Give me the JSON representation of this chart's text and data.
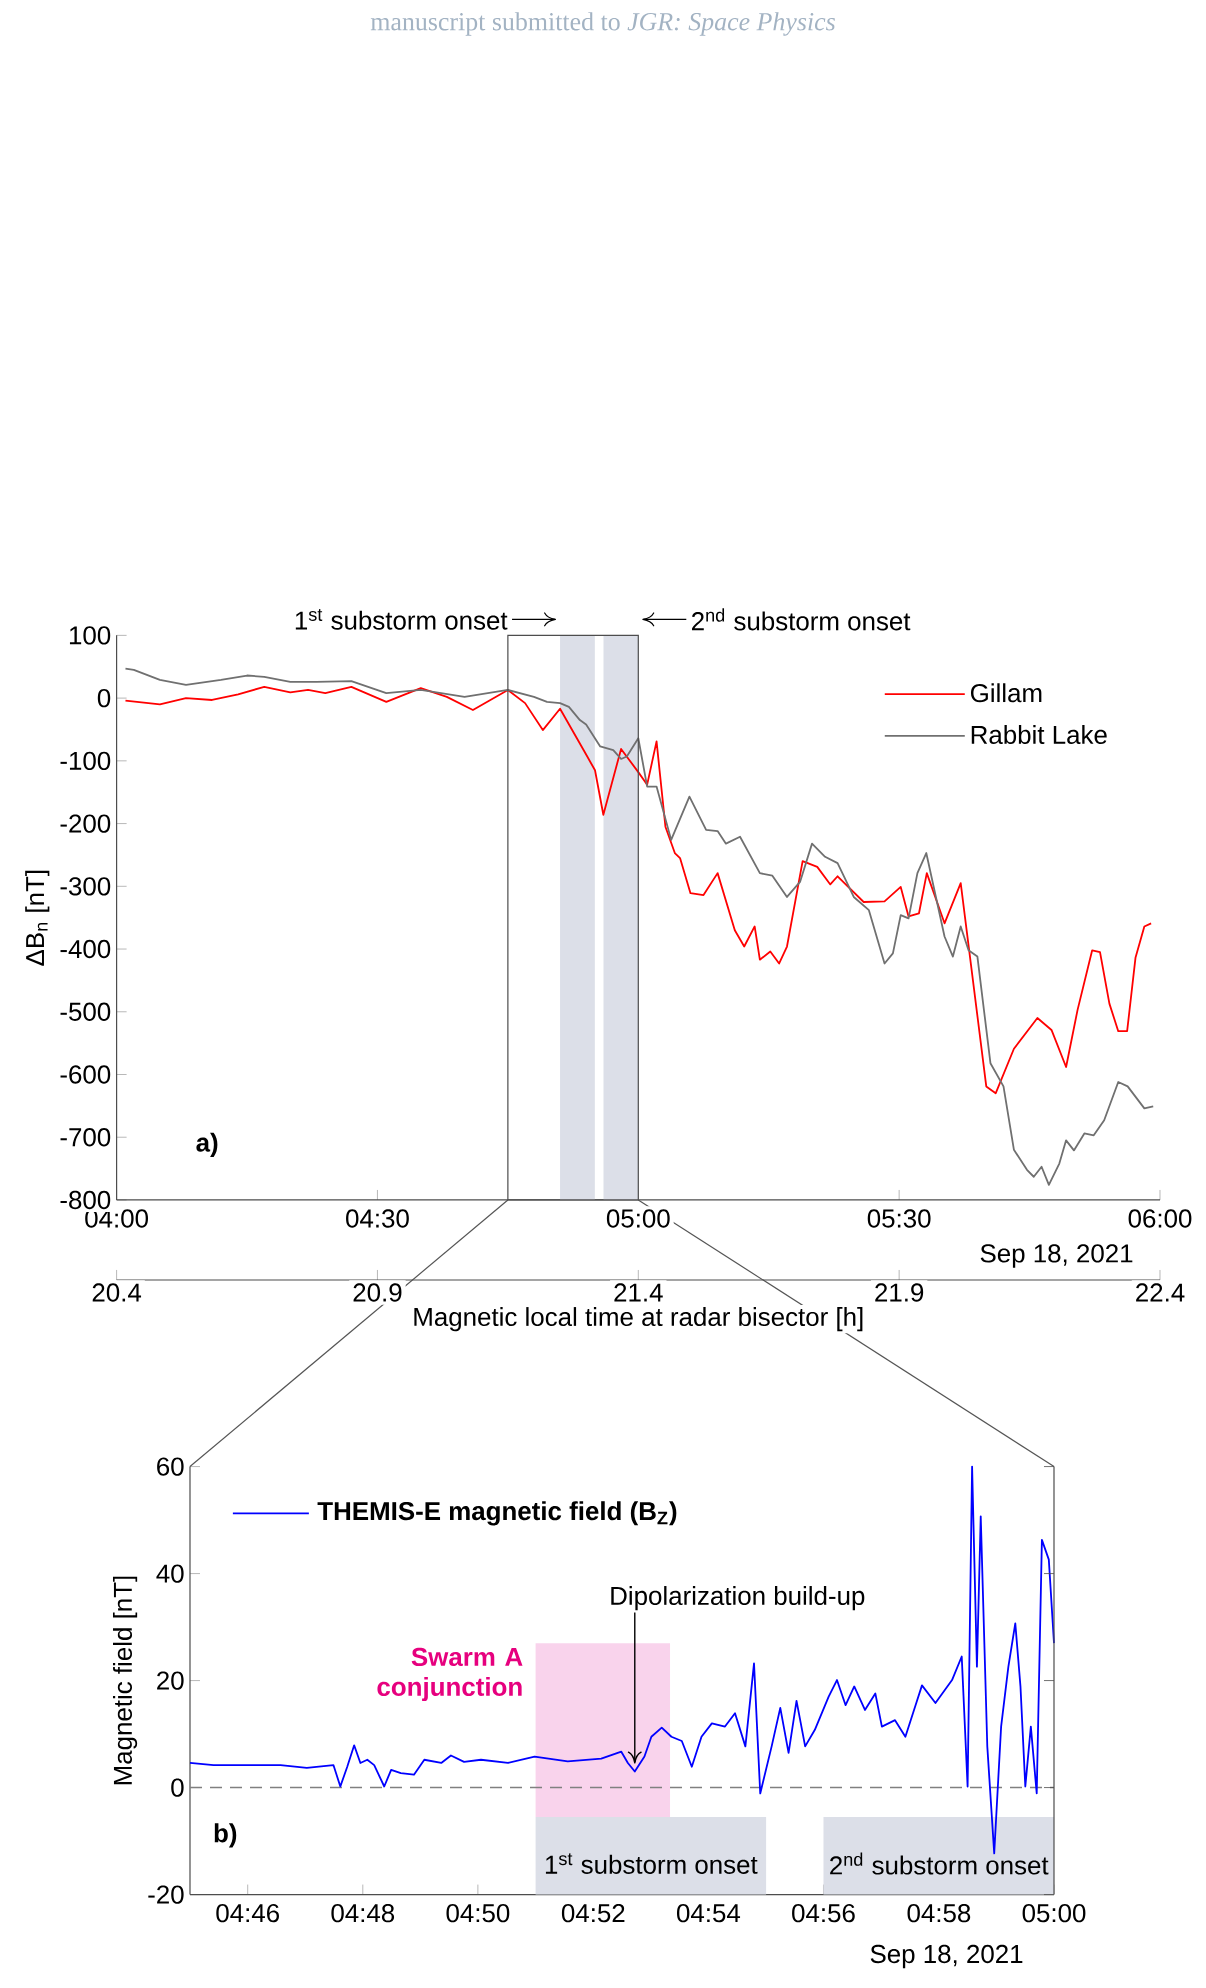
{
  "chart_data": [
    {
      "type": "line",
      "ylabel": "ΔB$_{n}$ [nT]",
      "x2label": "Magnetic local time at radar bisector [h]",
      "xlim": [
        4,
        6
      ],
      "xticks": [
        {
          "value": 4,
          "label": "04:00"
        },
        {
          "value": 4.5,
          "label": "04:30"
        },
        {
          "value": 5,
          "label": "05:00"
        },
        {
          "value": 5.5,
          "label": "05:30"
        },
        {
          "value": 6,
          "label": "06:00"
        }
      ],
      "ylim": [
        -800,
        100
      ],
      "yticks": [
        -800,
        -700,
        -600,
        -500,
        -400,
        -300,
        -200,
        -100,
        0,
        100
      ],
      "x2lim": [
        20.4,
        22.4
      ],
      "x2ticks": [
        20.4,
        20.9,
        21.4,
        21.9,
        22.4
      ],
      "legend": "top right",
      "marker": "none",
      "line_style": "solid",
      "bands": [
        {
          "axis": "x",
          "from": 4.85,
          "to": 4.9167,
          "label": "1$^{st}$ substorm onset",
          "color": "#dcdfe8"
        },
        {
          "axis": "x",
          "from": 4.9333,
          "to": 5.0,
          "label": "2$^{nd}$ substorm onset",
          "color": "#dcdfe8"
        }
      ],
      "annotations": [
        "manuscript submitted to *JGR: Space Physics*",
        "a)",
        "Sep 18, 2021"
      ],
      "series": [
        {
          "name": "Gillam",
          "color": "#ff0000",
          "x": [
            4.017,
            4.083,
            4.133,
            4.183,
            4.233,
            4.283,
            4.333,
            4.367,
            4.4,
            4.45,
            4.517,
            4.583,
            4.633,
            4.683,
            4.75,
            4.783,
            4.817,
            4.85,
            4.9,
            4.917,
            4.933,
            4.967,
            5.0,
            5.017,
            5.035,
            5.052,
            5.07,
            5.08,
            5.1,
            5.125,
            5.152,
            5.185,
            5.203,
            5.223,
            5.233,
            5.253,
            5.27,
            5.285,
            5.315,
            5.343,
            5.368,
            5.382,
            5.432,
            5.472,
            5.503,
            5.518,
            5.538,
            5.553,
            5.587,
            5.618,
            5.667,
            5.685,
            5.72,
            5.765,
            5.792,
            5.82,
            5.842,
            5.87,
            5.885,
            5.903,
            5.92,
            5.937,
            5.953,
            5.97,
            5.983
          ],
          "values": [
            -4,
            -10,
            0,
            -3,
            6,
            18,
            9,
            13,
            8,
            18,
            -6,
            16,
            2,
            -19,
            13,
            -8,
            -51,
            -17,
            -90,
            -115,
            -186,
            -81,
            -118,
            -138,
            -69,
            -205,
            -247,
            -255,
            -311,
            -314,
            -279,
            -370,
            -396,
            -364,
            -417,
            -404,
            -423,
            -396,
            -260,
            -269,
            -297,
            -284,
            -325,
            -324,
            -301,
            -348,
            -343,
            -279,
            -359,
            -295,
            -619,
            -630,
            -559,
            -510,
            -529,
            -588,
            -497,
            -402,
            -405,
            -487,
            -531,
            -531,
            -414,
            -364,
            -359
          ]
        },
        {
          "name": "Rabbit Lake",
          "color": "#707070",
          "x": [
            4.017,
            4.033,
            4.083,
            4.133,
            4.2,
            4.25,
            4.283,
            4.333,
            4.383,
            4.45,
            4.517,
            4.583,
            4.667,
            4.75,
            4.8,
            4.825,
            4.85,
            4.867,
            4.888,
            4.9,
            4.927,
            4.952,
            4.967,
            4.978,
            5.0,
            5.017,
            5.035,
            5.063,
            5.098,
            5.13,
            5.152,
            5.168,
            5.195,
            5.233,
            5.257,
            5.285,
            5.31,
            5.333,
            5.358,
            5.382,
            5.413,
            5.442,
            5.472,
            5.488,
            5.503,
            5.518,
            5.535,
            5.552,
            5.587,
            5.603,
            5.618,
            5.633,
            5.65,
            5.675,
            5.7,
            5.72,
            5.745,
            5.758,
            5.773,
            5.787,
            5.807,
            5.82,
            5.835,
            5.855,
            5.873,
            5.893,
            5.92,
            5.938,
            5.97,
            5.987
          ],
          "values": [
            47,
            45,
            29,
            21,
            29,
            36,
            34,
            26,
            26,
            27,
            8,
            13,
            2,
            13,
            2,
            -6,
            -8,
            -14,
            -35,
            -42,
            -77,
            -83,
            -97,
            -93,
            -64,
            -141,
            -141,
            -226,
            -157,
            -210,
            -212,
            -232,
            -221,
            -279,
            -283,
            -317,
            -293,
            -232,
            -253,
            -263,
            -317,
            -338,
            -423,
            -407,
            -346,
            -351,
            -279,
            -247,
            -380,
            -412,
            -364,
            -402,
            -412,
            -582,
            -619,
            -720,
            -752,
            -763,
            -747,
            -776,
            -742,
            -705,
            -721,
            -694,
            -697,
            -673,
            -612,
            -619,
            -654,
            -651
          ]
        }
      ]
    },
    {
      "type": "line",
      "ylabel": "Magnetic field [nT]",
      "xlim": [
        4.75,
        5.0
      ],
      "xticks": [
        {
          "value": 4.7667,
          "label": "04:46"
        },
        {
          "value": 4.8,
          "label": "04:48"
        },
        {
          "value": 4.8333,
          "label": "04:50"
        },
        {
          "value": 4.8667,
          "label": "04:52"
        },
        {
          "value": 4.9,
          "label": "04:54"
        },
        {
          "value": 4.9333,
          "label": "04:56"
        },
        {
          "value": 4.9667,
          "label": "04:58"
        },
        {
          "value": 5.0,
          "label": "05:00"
        }
      ],
      "ylim": [
        -20,
        60
      ],
      "yticks": [
        -20,
        0,
        20,
        40,
        60
      ],
      "legend": "top left",
      "marker": "none",
      "line_style": "solid",
      "bands": [
        {
          "axis": "x",
          "from": 4.85,
          "to": 4.8889,
          "label": "Swarm A conjunction",
          "color": "#f9d3ec"
        },
        {
          "axis": "x",
          "from": 4.85,
          "to": 4.9167,
          "label": "1$^{st}$ substorm onset",
          "color": "#dcdfe8"
        },
        {
          "axis": "x",
          "from": 4.9333,
          "to": 5.0,
          "label": "2$^{nd}$ substorm onset",
          "color": "#dcdfe8"
        }
      ],
      "ref_lines": [
        {
          "axis": "y",
          "value": 0,
          "color": "#808080",
          "line_style": "dashed"
        }
      ],
      "annotations": [
        {
          "text": "Dipolarization build-up",
          "x": 4.8787,
          "y": 3.0
        },
        "b)",
        "Sep 18, 2021"
      ],
      "series": [
        {
          "name": "THEMIS-E magnetic field (B$_{Z}$)",
          "color": "#0000ff",
          "x": [
            4.75,
            4.7568,
            4.7762,
            4.7838,
            4.7915,
            4.7935,
            4.7955,
            4.7975,
            4.7993,
            4.8013,
            4.8033,
            4.8062,
            4.8082,
            4.811,
            4.8148,
            4.8178,
            4.8227,
            4.8255,
            4.8293,
            4.8342,
            4.842,
            4.8497,
            4.8593,
            4.869,
            4.8748,
            4.8767,
            4.8787,
            4.8815,
            4.8835,
            4.8865,
            4.8893,
            4.8923,
            4.8952,
            4.898,
            4.901,
            4.9048,
            4.9077,
            4.9107,
            4.9132,
            4.915,
            4.9183,
            4.9208,
            4.9232,
            4.9255,
            4.928,
            4.9308,
            4.9348,
            4.9372,
            4.9397,
            4.9422,
            4.9453,
            4.9483,
            4.9502,
            4.954,
            4.957,
            4.9598,
            4.9618,
            4.9657,
            4.9705,
            4.9733,
            4.975,
            4.9763,
            4.9777,
            4.9788,
            4.9807,
            4.9827,
            4.9847,
            4.9868,
            4.9888,
            4.9903,
            4.9917,
            4.9933,
            4.995,
            4.9965,
            4.9985,
            5.0
          ],
          "values": [
            4.6,
            4.2,
            4.2,
            3.7,
            4.2,
            0.2,
            3.9,
            7.9,
            4.6,
            5.2,
            4.2,
            0.2,
            3.3,
            2.7,
            2.4,
            5.2,
            4.6,
            6.0,
            4.8,
            5.2,
            4.6,
            5.8,
            4.9,
            5.4,
            6.7,
            4.6,
            3.0,
            5.8,
            9.5,
            11.2,
            9.5,
            8.7,
            3.9,
            9.5,
            12.0,
            11.4,
            13.9,
            7.7,
            23.2,
            -1.1,
            7.7,
            14.9,
            6.5,
            16.2,
            7.7,
            10.8,
            17.0,
            20.1,
            15.4,
            18.9,
            14.5,
            17.6,
            11.4,
            12.6,
            9.5,
            15.1,
            19.1,
            15.8,
            20.1,
            24.5,
            0.2,
            60,
            22.6,
            50.7,
            7.7,
            -12.3,
            11.4,
            22.6,
            30.7,
            18.9,
            0.2,
            11.4,
            -1.1,
            46.3,
            42.6,
            27.0
          ]
        }
      ]
    }
  ]
}
